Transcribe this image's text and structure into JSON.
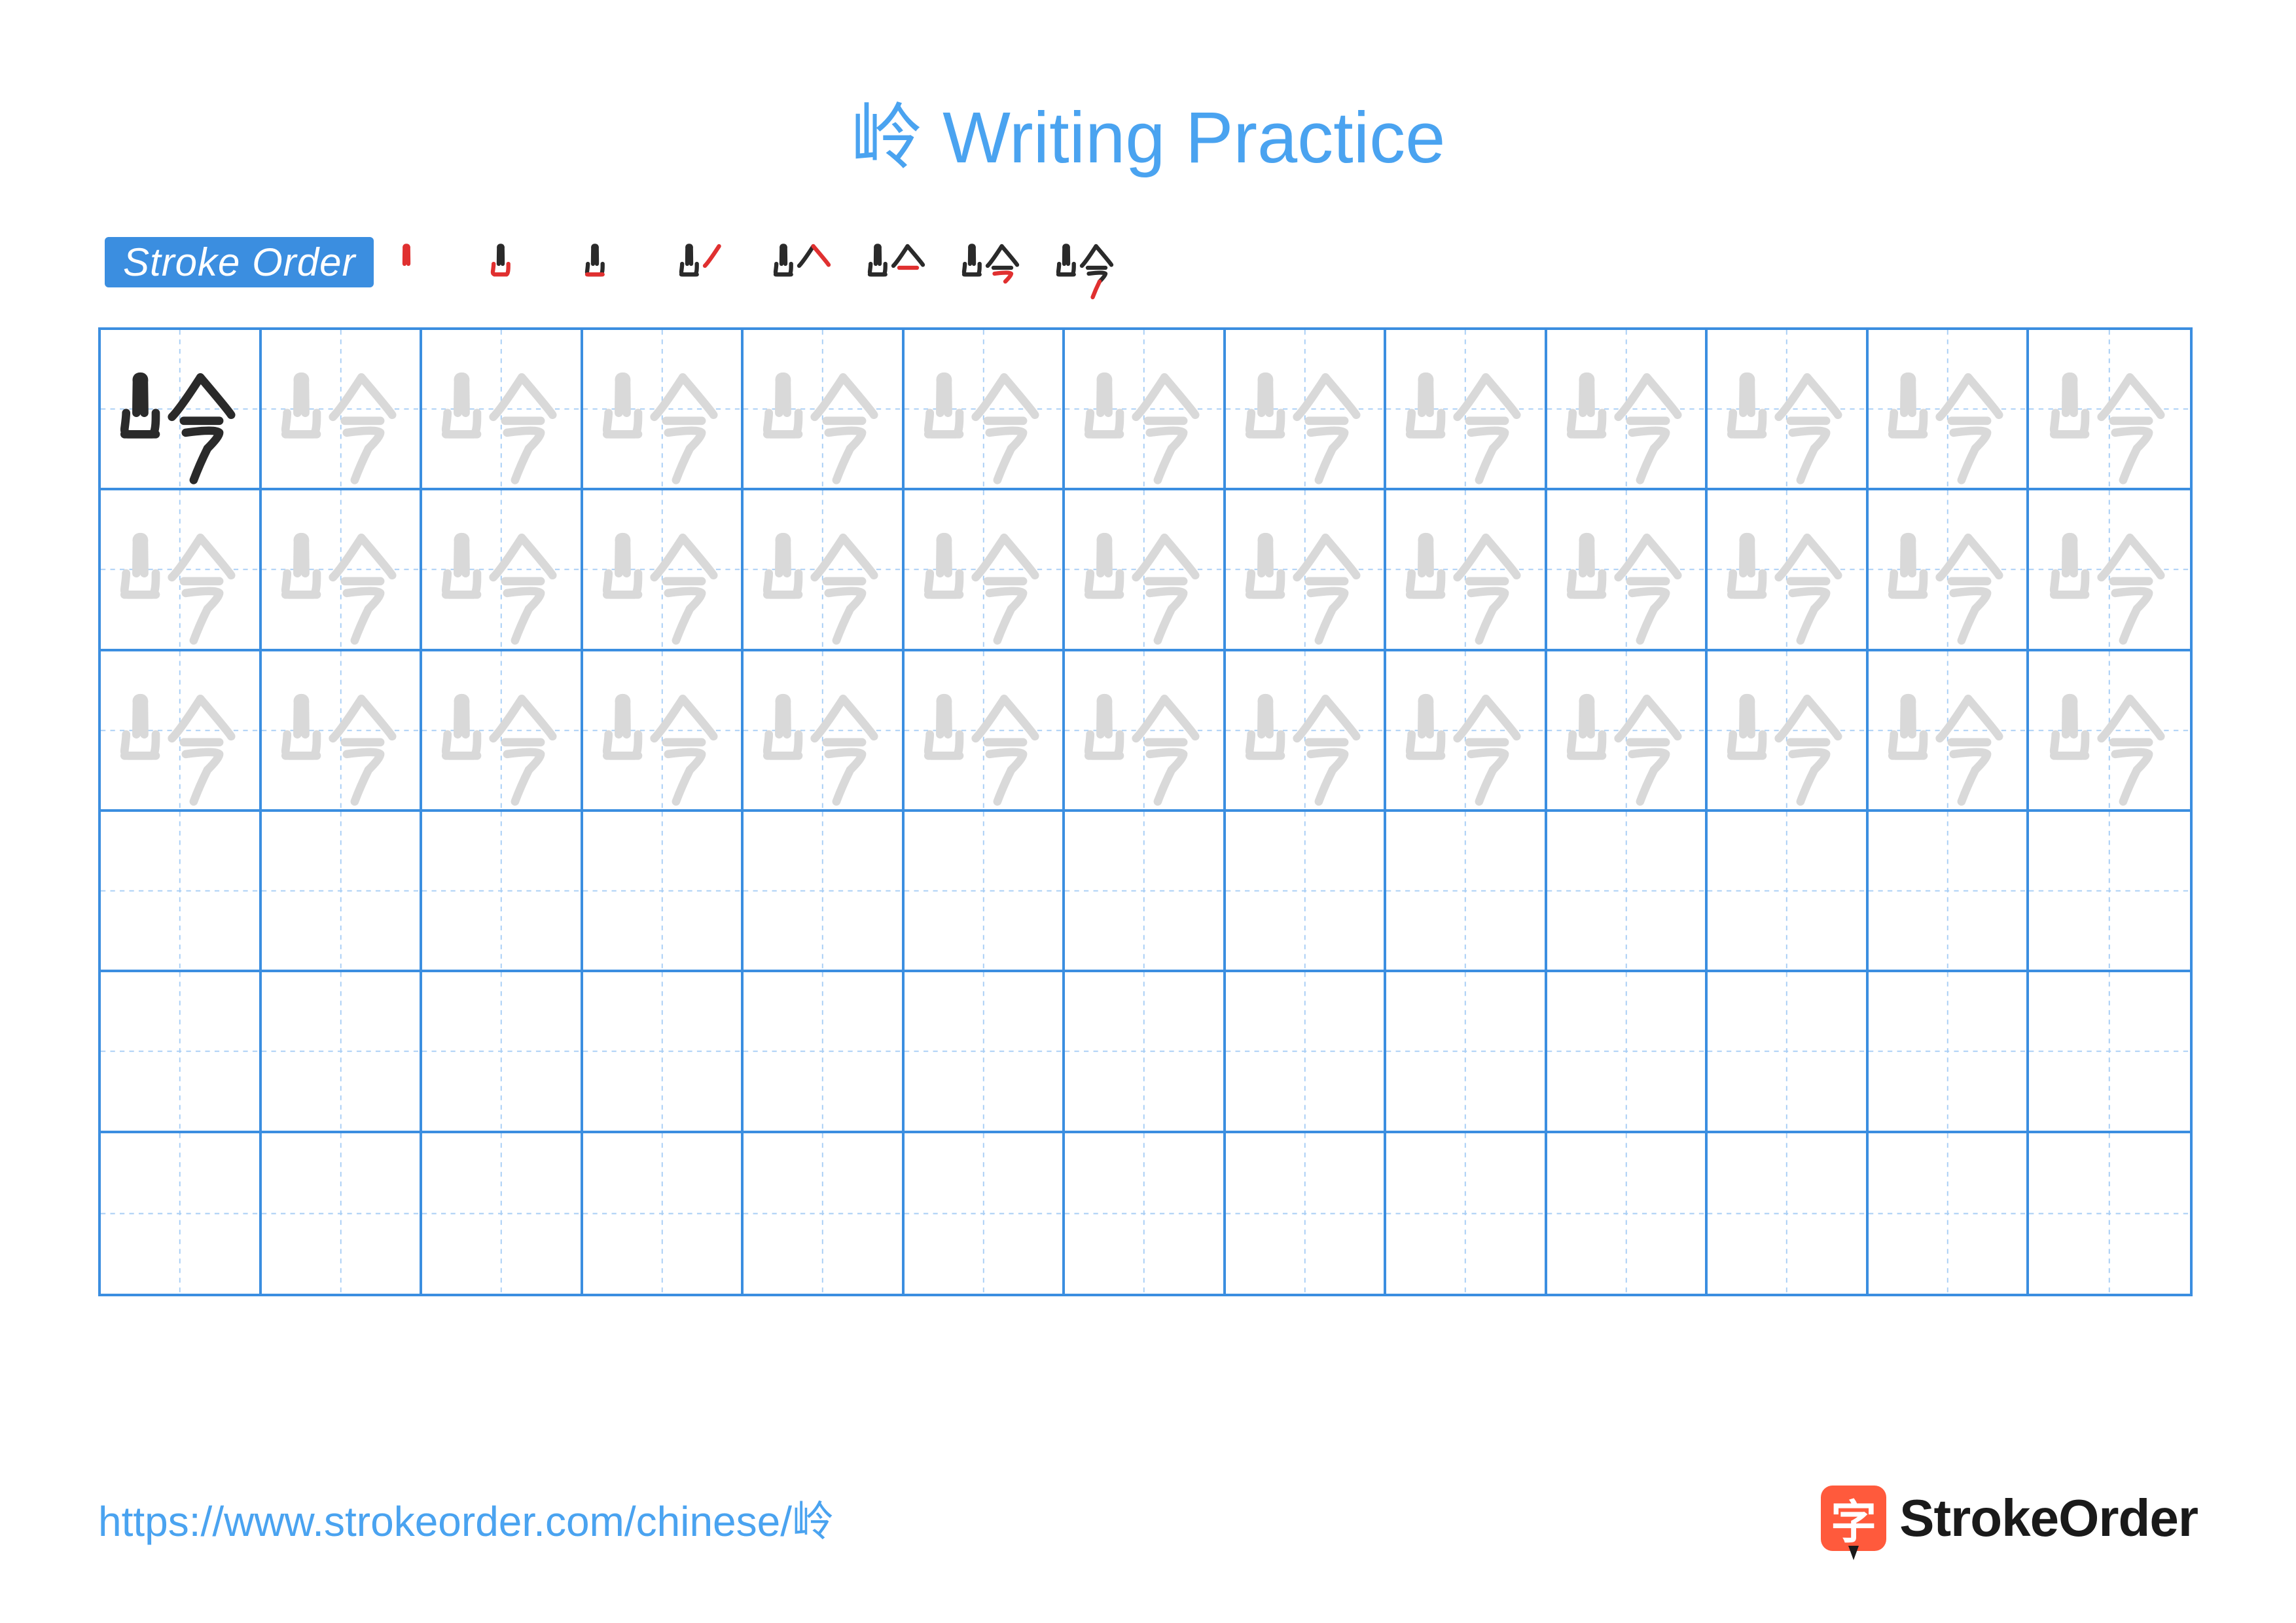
{
  "title": "岭 Writing Practice",
  "stroke_order_label": "Stroke Order",
  "character": "岭",
  "num_strokes": 8,
  "grid": {
    "cols": 13,
    "rows": 6,
    "trace_rows": 3
  },
  "colors": {
    "accent": "#3b8ee0",
    "title": "#4aa3f0",
    "grid_border": "#3b8ee0",
    "guide_line": "#a8cef5",
    "char_dark": "#2a2a2a",
    "char_trace": "#d9d9d9",
    "stroke_current": "#e03030",
    "badge_bg": "#3b8ee0",
    "badge_text": "#ffffff",
    "url": "#4aa3f0",
    "logo_icon": "#ff5a3c",
    "logo_text": "#1a1a1a"
  },
  "strokes": [
    "M 180 420 Q 180 380 182 260 Q 178 236 200 236 Q 222 236 218 262 Q 220 380 220 420",
    "M 128 420 Q 128 440 120 500 Q 118 520 136 528 Q 200 528 260 528 Q 278 520 278 440 Q 278 420 278 420",
    "M 120 528 L 278 528",
    "M 504 240 Q 400 400 360 440",
    "M 504 240 Q 640 400 660 430",
    "M 420 460 L 600 460",
    "M 430 520 Q 580 500 600 520 Q 600 540 540 600",
    "M 540 600 Q 500 680 470 760"
  ],
  "url": "https://www.strokeorder.com/chinese/岭",
  "logo_char": "字",
  "logo_text": "StrokeOrder"
}
